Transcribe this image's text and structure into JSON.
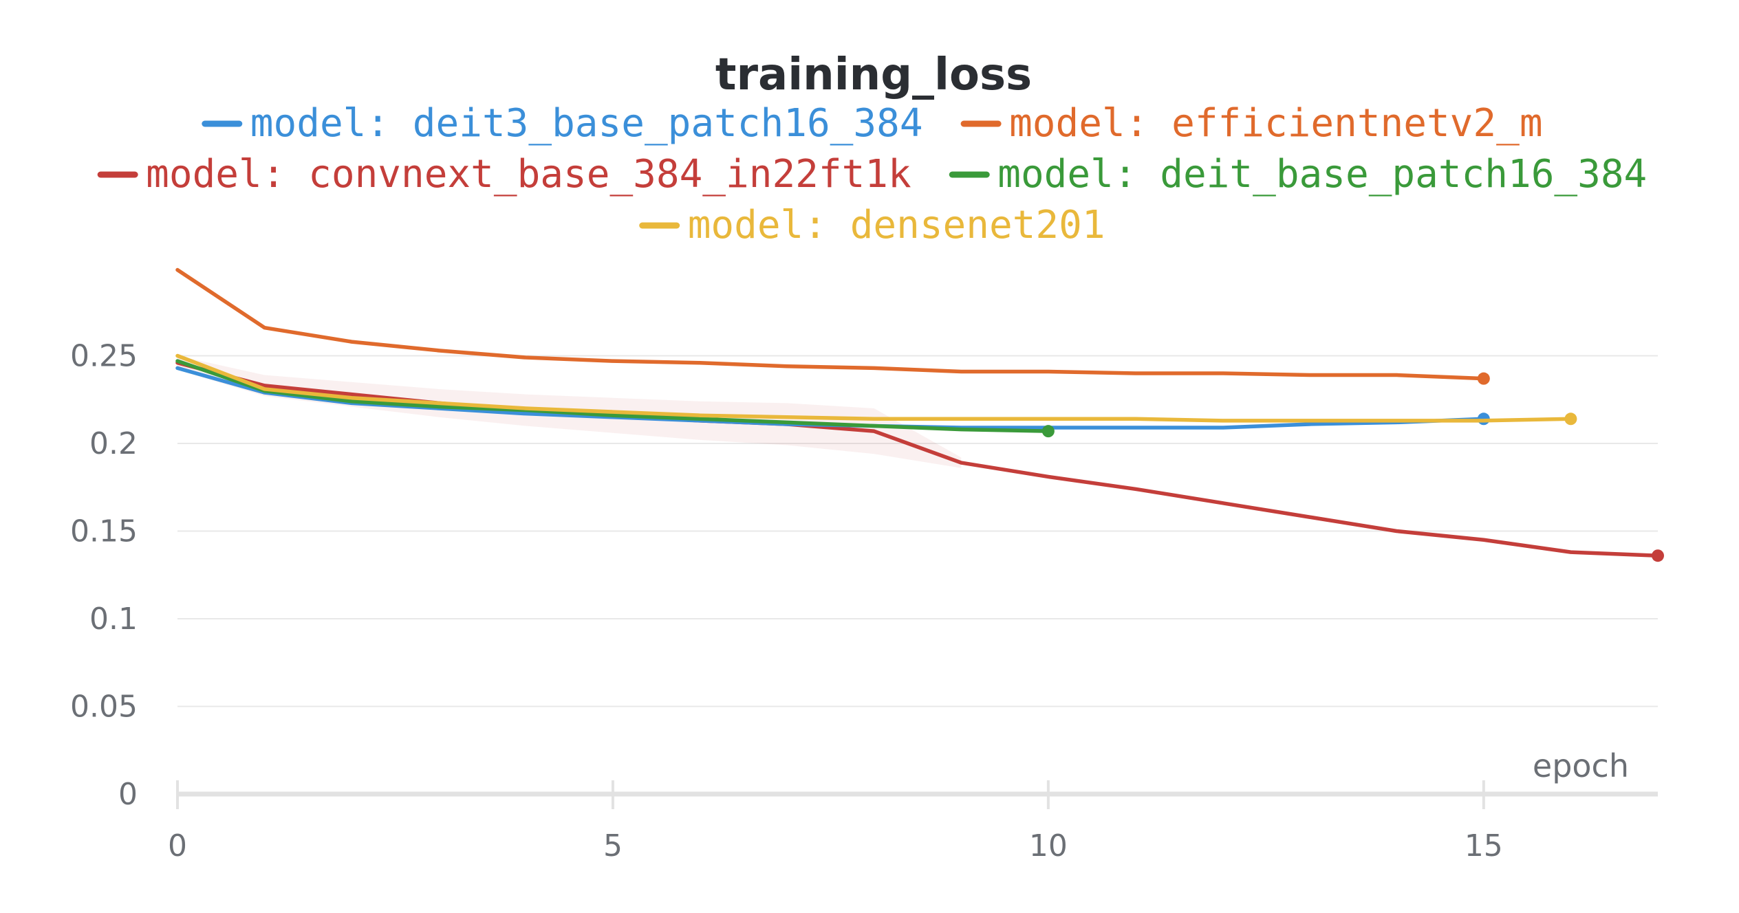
{
  "chart_data": {
    "type": "line",
    "title": "training_loss",
    "xlabel": "epoch",
    "ylabel": "",
    "xlim": [
      0,
      17
    ],
    "ylim": [
      0,
      0.3
    ],
    "xticks": [
      "0",
      "5",
      "10",
      "15"
    ],
    "yticks": [
      "0",
      "0.05",
      "0.1",
      "0.15",
      "0.2",
      "0.25"
    ],
    "grid": true,
    "legend_position": "top",
    "series": [
      {
        "name": "model: deit3_base_patch16_384",
        "color": "#3b8fd9",
        "x": [
          0,
          1,
          2,
          3,
          4,
          5,
          6,
          7,
          8,
          9,
          10,
          11,
          12,
          13,
          14,
          15
        ],
        "y": [
          0.243,
          0.229,
          0.223,
          0.22,
          0.217,
          0.215,
          0.213,
          0.211,
          0.21,
          0.209,
          0.209,
          0.209,
          0.209,
          0.211,
          0.212,
          0.214
        ]
      },
      {
        "name": "model: efficientnetv2_m",
        "color": "#e06a2c",
        "x": [
          0,
          1,
          2,
          3,
          4,
          5,
          6,
          7,
          8,
          9,
          10,
          11,
          12,
          13,
          14,
          15
        ],
        "y": [
          0.299,
          0.266,
          0.258,
          0.253,
          0.249,
          0.247,
          0.246,
          0.244,
          0.243,
          0.241,
          0.241,
          0.24,
          0.24,
          0.239,
          0.239,
          0.237
        ]
      },
      {
        "name": "model: convnext_base_384_in22ft1k",
        "color": "#c43e3a",
        "x": [
          0,
          1,
          2,
          3,
          4,
          5,
          6,
          7,
          8,
          9,
          10,
          11,
          12,
          13,
          14,
          15,
          16,
          17
        ],
        "y": [
          0.246,
          0.233,
          0.228,
          0.223,
          0.219,
          0.216,
          0.213,
          0.211,
          0.207,
          0.189,
          0.181,
          0.174,
          0.166,
          0.158,
          0.15,
          0.145,
          0.138,
          0.136
        ]
      },
      {
        "name": "model: deit_base_patch16_384",
        "color": "#3a9a3a",
        "x": [
          0,
          1,
          2,
          3,
          4,
          5,
          6,
          7,
          8,
          9,
          10
        ],
        "y": [
          0.247,
          0.23,
          0.224,
          0.221,
          0.219,
          0.216,
          0.214,
          0.212,
          0.21,
          0.208,
          0.207
        ]
      },
      {
        "name": "model: densenet201",
        "color": "#e9b83b",
        "x": [
          0,
          1,
          2,
          3,
          4,
          5,
          6,
          7,
          8,
          9,
          10,
          11,
          12,
          13,
          14,
          15,
          16
        ],
        "y": [
          0.25,
          0.231,
          0.226,
          0.223,
          0.22,
          0.218,
          0.216,
          0.215,
          0.214,
          0.214,
          0.214,
          0.214,
          0.213,
          0.213,
          0.213,
          0.213,
          0.214
        ]
      }
    ]
  }
}
